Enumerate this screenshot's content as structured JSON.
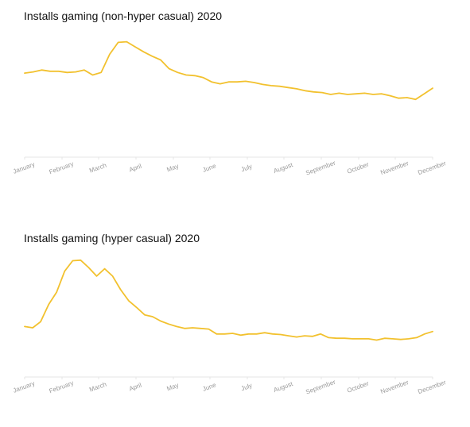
{
  "chart_data": [
    {
      "type": "line",
      "title": "Installs gaming (non-hyper casual) 2020",
      "xlabel": "",
      "ylabel": "",
      "x_tick_labels": [
        "January",
        "February",
        "March",
        "April",
        "May",
        "June",
        "July",
        "August",
        "September",
        "October",
        "November",
        "December"
      ],
      "grid": false,
      "legend": "none",
      "line_color": "#f2c12e",
      "axis_color": "#e6e6e6",
      "ylim": [
        0,
        100
      ],
      "series": [
        {
          "values": [
            67,
            68,
            69.5,
            68.5,
            68.5,
            67.5,
            68,
            69.5,
            65.5,
            67.5,
            82,
            91.5,
            92,
            88,
            84,
            80.5,
            77.5,
            70.5,
            67.5,
            65.5,
            65,
            63.5,
            60,
            58.5,
            60,
            60,
            60.5,
            59.5,
            58,
            57,
            56.5,
            55.5,
            54.5,
            53,
            52,
            51.5,
            50,
            51,
            50,
            50.5,
            51,
            50,
            50.5,
            49,
            47,
            47.5,
            46,
            50.5,
            55
          ]
        }
      ]
    },
    {
      "type": "line",
      "title": "Installs gaming (hyper casual) 2020",
      "xlabel": "",
      "ylabel": "",
      "x_tick_labels": [
        "January",
        "February",
        "March",
        "April",
        "May",
        "June",
        "July",
        "August",
        "September",
        "October",
        "November",
        "December"
      ],
      "grid": false,
      "legend": "none",
      "line_color": "#f2c12e",
      "axis_color": "#e6e6e6",
      "ylim": [
        0,
        100
      ],
      "series": [
        {
          "values": [
            41,
            40,
            45,
            59,
            69,
            86,
            94.5,
            95,
            89,
            82,
            88,
            82,
            71,
            62,
            56.5,
            50.5,
            49,
            45.5,
            43,
            41,
            39.5,
            40,
            39.5,
            39,
            35,
            35,
            35.5,
            34,
            35,
            35,
            36,
            35,
            34.5,
            33.5,
            32.5,
            33.5,
            33,
            35,
            32,
            31.5,
            31.5,
            31,
            31,
            31,
            30,
            31.5,
            31,
            30.5,
            31,
            32,
            35,
            37
          ]
        }
      ]
    }
  ]
}
